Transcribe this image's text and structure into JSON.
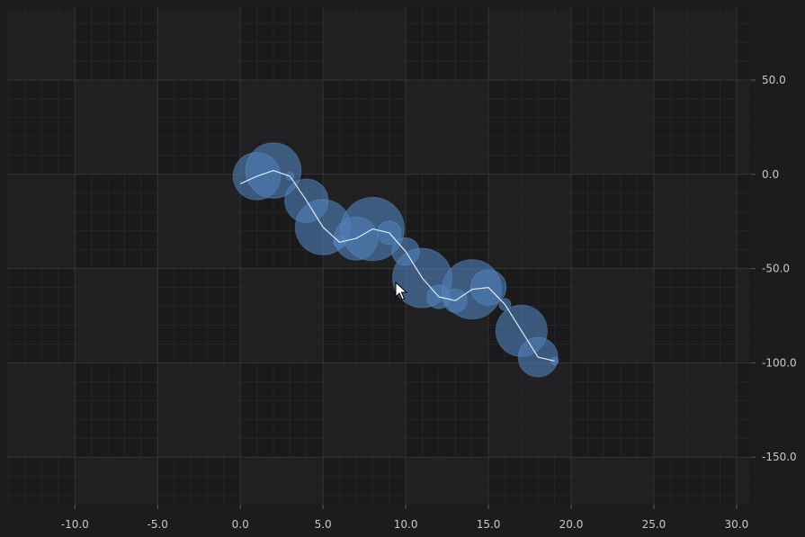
{
  "chart_data": {
    "type": "scatter",
    "subtype": "bubble-with-line",
    "x_axis": {
      "range": [
        -14.2,
        30.8
      ],
      "ticks": [
        -10,
        -5,
        0,
        5,
        10,
        15,
        20,
        25,
        30
      ],
      "tick_labels": [
        "-10.0",
        "-5.0",
        "0.0",
        "5.0",
        "10.0",
        "15.0",
        "20.0",
        "25.0",
        "30.0"
      ],
      "position": "bottom"
    },
    "y_axis": {
      "range": [
        -175.4,
        88
      ],
      "ticks": [
        50,
        0,
        -50,
        -100,
        -150
      ],
      "tick_labels": [
        "50.0",
        "0.0",
        "-50.0",
        "-100.0",
        "-150.0"
      ],
      "position": "right"
    },
    "grid": true,
    "colors": {
      "background": "#1c1c1e",
      "plot_band_dark": "#1a1a1c",
      "plot_band_light": "#202022",
      "grid_major": "#343436",
      "grid_minor": "#252527",
      "axis_area": "#1c1c1e",
      "bubble_fill": "#4f7fb8",
      "bubble_stroke": "#6f9bd1",
      "line": "#dfe8f3",
      "tick_label": "#c8c8c8"
    },
    "series": [
      {
        "x": [
          0,
          1,
          2,
          3,
          4,
          5,
          6,
          7,
          8,
          9,
          10,
          11,
          12,
          13,
          14,
          15,
          16,
          17,
          18,
          19
        ],
        "y": [
          -5,
          -1,
          2,
          -1,
          -14,
          -28,
          -36,
          -34,
          -29,
          -31,
          -41,
          -55,
          -65,
          -67,
          -61,
          -60,
          -69,
          -83,
          -97,
          -99
        ],
        "size": [
          0,
          12,
          14,
          2,
          11,
          14,
          3,
          11,
          16,
          6,
          7,
          15,
          6,
          6,
          15,
          9,
          3,
          13,
          10,
          2
        ]
      }
    ]
  }
}
